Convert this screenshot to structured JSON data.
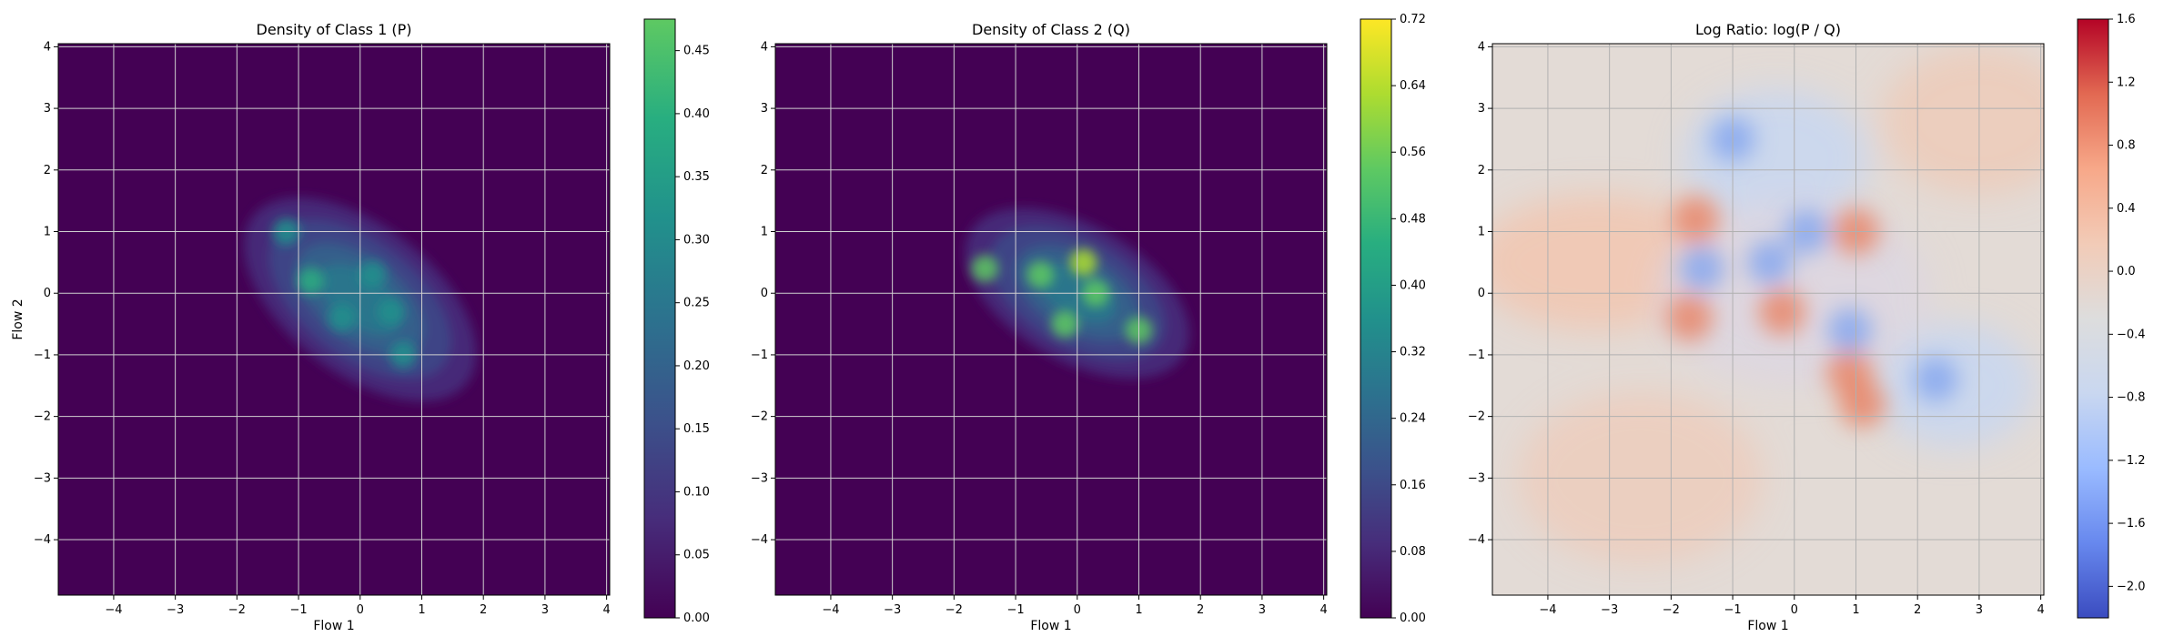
{
  "chart_data": [
    {
      "type": "heatmap",
      "title": "Density of Class 1 (P)",
      "xlabel": "Flow 1",
      "ylabel": "Flow 2",
      "xlim": [
        -4.9,
        4.05
      ],
      "ylim": [
        -4.9,
        4.05
      ],
      "xticks": [
        "−4",
        "−3",
        "−2",
        "−1",
        "0",
        "1",
        "2",
        "3",
        "4"
      ],
      "yticks": [
        "4",
        "3",
        "2",
        "1",
        "0",
        "−1",
        "−2",
        "−3",
        "−4"
      ],
      "grid": true,
      "colormap": "viridis",
      "colorbar": {
        "range": [
          0.0,
          0.475
        ],
        "ticks": [
          "0.00",
          "0.05",
          "0.10",
          "0.15",
          "0.20",
          "0.25",
          "0.30",
          "0.35",
          "0.40",
          "0.45"
        ],
        "colors": [
          "#440154",
          "#472d7b",
          "#3b528b",
          "#2c728e",
          "#21918c",
          "#28ae80",
          "#5ec962"
        ]
      },
      "blob": {
        "center": [
          0.0,
          -0.1
        ],
        "rotation_deg": -38,
        "semi_axes": [
          2.2,
          1.2
        ],
        "peak": 0.45,
        "hotspots": [
          [
            -0.8,
            0.2
          ],
          [
            0.2,
            0.3
          ],
          [
            -0.3,
            -0.4
          ],
          [
            0.7,
            -1.0
          ],
          [
            -1.2,
            1.0
          ],
          [
            0.5,
            -0.3
          ]
        ]
      }
    },
    {
      "type": "heatmap",
      "title": "Density of Class 2 (Q)",
      "xlabel": "Flow 1",
      "ylabel": "",
      "xlim": [
        -4.9,
        4.05
      ],
      "ylim": [
        -4.9,
        4.05
      ],
      "xticks": [
        "−4",
        "−3",
        "−2",
        "−1",
        "0",
        "1",
        "2",
        "3",
        "4"
      ],
      "yticks": [
        "4",
        "3",
        "2",
        "1",
        "0",
        "−1",
        "−2",
        "−3",
        "−4"
      ],
      "grid": true,
      "colormap": "viridis",
      "colorbar": {
        "range": [
          0.0,
          0.72
        ],
        "ticks": [
          "0.00",
          "0.08",
          "0.16",
          "0.24",
          "0.32",
          "0.40",
          "0.48",
          "0.56",
          "0.64",
          "0.72"
        ],
        "colors": [
          "#440154",
          "#472d7b",
          "#3b528b",
          "#2c728e",
          "#21918c",
          "#28ae80",
          "#5ec962",
          "#addc30",
          "#fde725"
        ]
      },
      "blob": {
        "center": [
          0.0,
          0.0
        ],
        "rotation_deg": -30,
        "semi_axes": [
          2.0,
          1.1
        ],
        "peak": 0.55,
        "hotspots": [
          [
            0.1,
            0.5
          ],
          [
            -1.5,
            0.4
          ],
          [
            0.3,
            0.0
          ],
          [
            -0.6,
            0.3
          ],
          [
            1.0,
            -0.6
          ],
          [
            -0.2,
            -0.5
          ]
        ]
      }
    },
    {
      "type": "heatmap",
      "title": "Log Ratio: log(P / Q)",
      "xlabel": "Flow 1",
      "ylabel": "",
      "xlim": [
        -4.9,
        4.05
      ],
      "ylim": [
        -4.9,
        4.05
      ],
      "xticks": [
        "−4",
        "−3",
        "−2",
        "−1",
        "0",
        "1",
        "2",
        "3",
        "4"
      ],
      "yticks": [
        "4",
        "3",
        "2",
        "1",
        "0",
        "−1",
        "−2",
        "−3",
        "−4"
      ],
      "grid": true,
      "colormap": "coolwarm",
      "colorbar": {
        "range": [
          -2.2,
          1.6
        ],
        "ticks": [
          "−2.0",
          "−1.6",
          "−1.2",
          "−0.8",
          "−0.4",
          "0.0",
          "0.4",
          "0.8",
          "1.2",
          "1.6"
        ],
        "colors": [
          "#3b4cc0",
          "#6788ee",
          "#9abbff",
          "#c9d7f0",
          "#dddddd",
          "#f2cbb7",
          "#f7a889",
          "#e26952",
          "#b40426"
        ]
      },
      "pos_spots": [
        [
          -1.6,
          1.2
        ],
        [
          -1.7,
          -0.4
        ],
        [
          -0.2,
          -0.3
        ],
        [
          1.0,
          1.0
        ],
        [
          0.9,
          -1.3
        ],
        [
          1.1,
          -1.8
        ]
      ],
      "neg_spots": [
        [
          -1.0,
          2.5
        ],
        [
          0.2,
          1.0
        ],
        [
          -1.5,
          0.4
        ],
        [
          2.3,
          -1.4
        ],
        [
          0.9,
          -0.6
        ],
        [
          -0.4,
          0.5
        ]
      ]
    }
  ]
}
